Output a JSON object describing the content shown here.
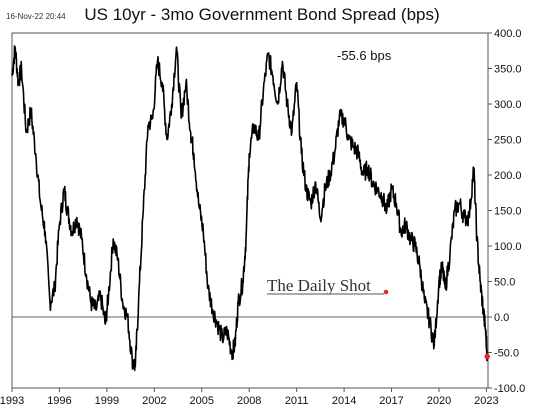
{
  "timestamp": "16-Nov-22 20:44",
  "watermark": "The Daily Shot",
  "chart_data": {
    "type": "line",
    "title": "US 10yr - 3mo Government Bond Spread (bps)",
    "xlabel": "",
    "ylabel": "",
    "ylim": [
      -100,
      400
    ],
    "xlim": [
      1993.0,
      2023.1
    ],
    "y_ticks": [
      "400.0",
      "350.0",
      "300.0",
      "250.0",
      "200.0",
      "150.0",
      "100.0",
      "50.0",
      "0.0",
      "-50.0",
      "-100.0"
    ],
    "x_ticks": [
      "1993",
      "1996",
      "1999",
      "2002",
      "2005",
      "2008",
      "2011",
      "2014",
      "2017",
      "2020",
      "2023"
    ],
    "annotation": "-55.6 bps",
    "last_value": -55.6,
    "axis_position": "right",
    "series": [
      {
        "x": [
          1993.0,
          1993.2,
          1993.4,
          1993.6,
          1993.9,
          1994.2,
          1994.5,
          1994.8,
          1995.1,
          1995.4,
          1995.7,
          1996.0,
          1996.3,
          1996.5,
          1996.8,
          1997.1,
          1997.4,
          1997.7,
          1998.0,
          1998.3,
          1998.6,
          1998.9,
          1999.1,
          1999.4,
          1999.7,
          2000.0,
          2000.3,
          2000.6,
          2000.8,
          2001.0,
          2001.3,
          2001.6,
          2001.9,
          2002.2,
          2002.5,
          2002.8,
          2003.1,
          2003.4,
          2003.7,
          2004.0,
          2004.3,
          2004.5,
          2004.8,
          2005.1,
          2005.4,
          2005.7,
          2006.0,
          2006.3,
          2006.6,
          2006.9,
          2007.1,
          2007.3,
          2007.6,
          2007.8,
          2008.0,
          2008.3,
          2008.6,
          2008.9,
          2009.2,
          2009.5,
          2009.8,
          2010.1,
          2010.4,
          2010.7,
          2011.0,
          2011.3,
          2011.6,
          2011.9,
          2012.2,
          2012.5,
          2012.8,
          2013.1,
          2013.4,
          2013.7,
          2014.0,
          2014.3,
          2014.6,
          2014.9,
          2015.2,
          2015.5,
          2015.8,
          2016.1,
          2016.4,
          2016.7,
          2017.0,
          2017.3,
          2017.6,
          2017.9,
          2018.2,
          2018.5,
          2018.8,
          2019.1,
          2019.4,
          2019.7,
          2020.0,
          2020.2,
          2020.4,
          2020.7,
          2021.0,
          2021.3,
          2021.6,
          2021.9,
          2022.2,
          2022.4,
          2022.6,
          2022.8,
          2022.95,
          2023.05
        ],
        "values": [
          340,
          380,
          330,
          350,
          260,
          290,
          230,
          160,
          120,
          20,
          40,
          130,
          180,
          150,
          120,
          140,
          110,
          60,
          20,
          10,
          30,
          -10,
          30,
          110,
          80,
          20,
          0,
          -60,
          -70,
          20,
          150,
          270,
          280,
          360,
          330,
          250,
          300,
          380,
          280,
          330,
          260,
          230,
          160,
          120,
          40,
          10,
          -10,
          -30,
          -20,
          -50,
          -40,
          20,
          50,
          110,
          230,
          270,
          250,
          320,
          370,
          340,
          300,
          360,
          300,
          260,
          330,
          230,
          180,
          160,
          190,
          140,
          180,
          200,
          230,
          280,
          280,
          250,
          240,
          230,
          200,
          210,
          190,
          180,
          170,
          150,
          180,
          160,
          120,
          130,
          110,
          100,
          70,
          20,
          -5,
          -40,
          50,
          70,
          40,
          90,
          150,
          160,
          140,
          140,
          210,
          110,
          50,
          10,
          -20,
          -55.6
        ]
      }
    ]
  }
}
